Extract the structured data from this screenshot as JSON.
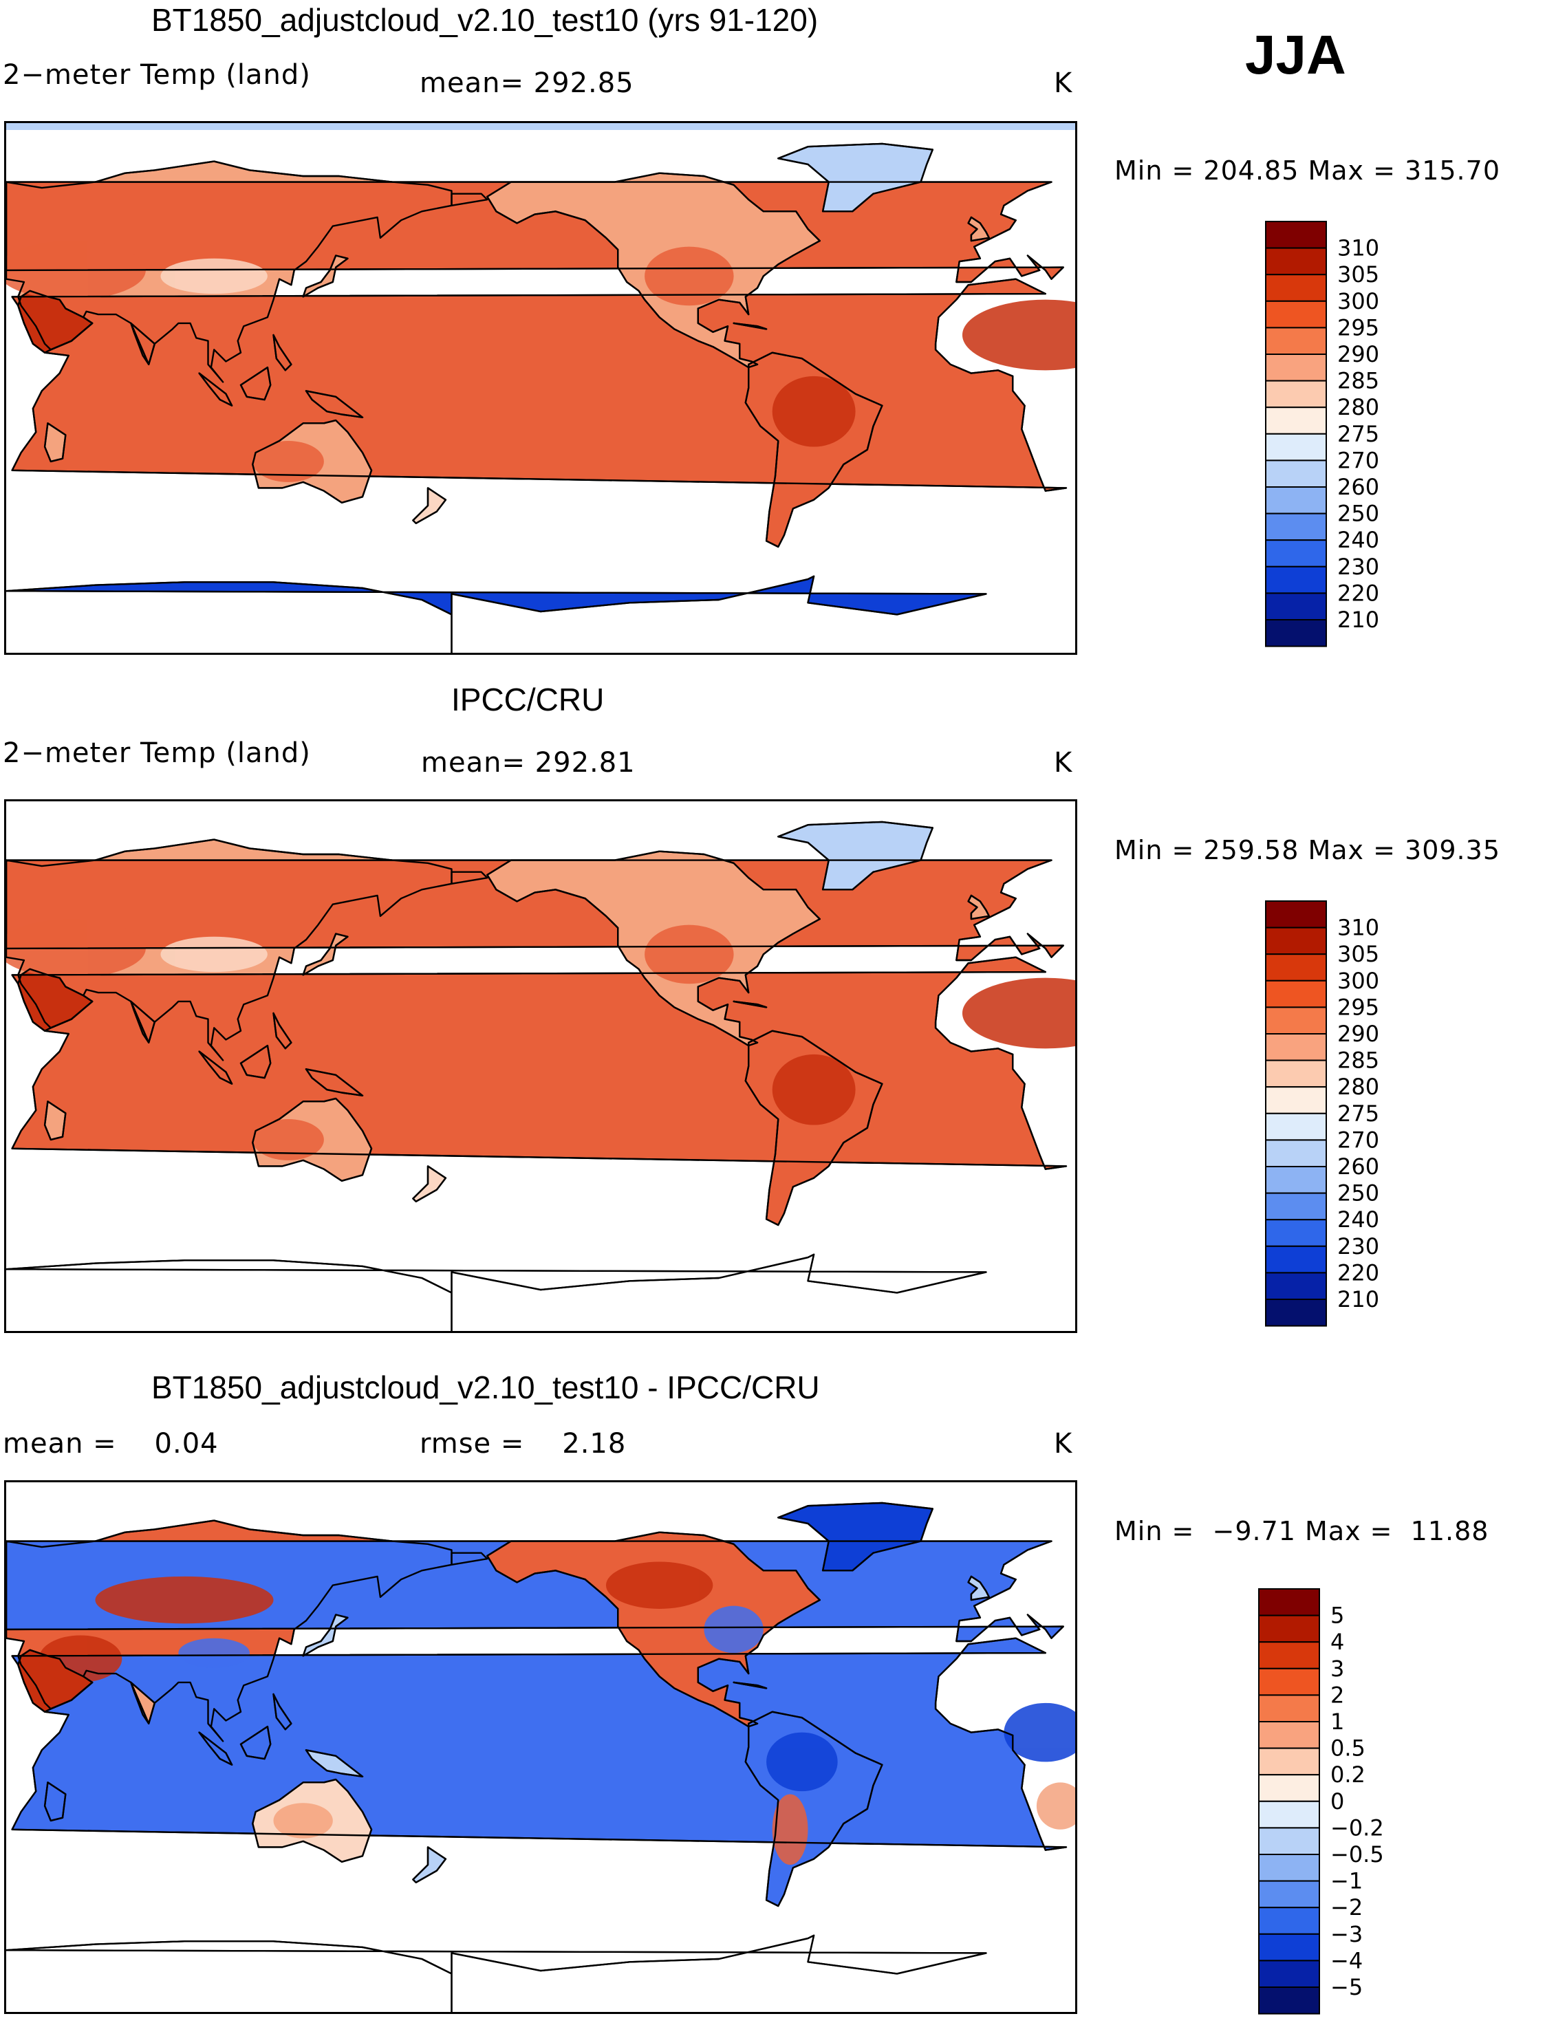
{
  "season": "JJA",
  "units": "K",
  "panels": [
    {
      "title": "BT1850_adjustcloud_v2.10_test10 (yrs 91-120)",
      "left_label": "2−meter Temp (land)",
      "mid_label": "mean= 292.85",
      "units": "K",
      "range_text": "Min = 204.85 Max = 315.70",
      "variant": "model"
    },
    {
      "title": "IPCC/CRU",
      "left_label": "2−meter Temp (land)",
      "mid_label": "mean= 292.81",
      "units": "K",
      "range_text": "Min = 259.58 Max = 309.35",
      "variant": "obs"
    },
    {
      "title": "BT1850_adjustcloud_v2.10_test10 - IPCC/CRU",
      "left_label": "mean =    0.04",
      "mid_label": "rmse =    2.18",
      "units": "K",
      "range_text": "Min =  −9.71 Max =  11.88",
      "variant": "diff"
    }
  ],
  "colorbars": {
    "temp": {
      "labels": [
        "310",
        "305",
        "300",
        "295",
        "290",
        "285",
        "280",
        "275",
        "270",
        "260",
        "250",
        "240",
        "230",
        "220",
        "210"
      ],
      "colors": [
        "#7f0000",
        "#b21a00",
        "#d8380c",
        "#ee5522",
        "#f47a4a",
        "#f9a37f",
        "#fccbb0",
        "#fdeee2",
        "#deecfb",
        "#b8d2f7",
        "#8db3f3",
        "#5c8df0",
        "#2f67ea",
        "#0e3fd6",
        "#0622a8",
        "#04106e"
      ]
    },
    "diff": {
      "labels": [
        "5",
        "4",
        "3",
        "2",
        "1",
        "0.5",
        "0.2",
        "0",
        "−0.2",
        "−0.5",
        "−1",
        "−2",
        "−3",
        "−4",
        "−5"
      ],
      "colors": [
        "#7f0000",
        "#b21a00",
        "#d8380c",
        "#ee5522",
        "#f47a4a",
        "#f9a37f",
        "#fccbb0",
        "#fdeee2",
        "#deecfb",
        "#b8d2f7",
        "#8db3f3",
        "#5c8df0",
        "#2f67ea",
        "#0e3fd6",
        "#0622a8",
        "#04106e"
      ]
    }
  },
  "map_colors": {
    "warm_dark": "#c8300f",
    "warm_mid": "#e8603a",
    "warm_light": "#f4a37e",
    "warm_pale": "#fbd7c3",
    "cold_pale": "#b8d2f7",
    "cold_dark": "#0e3fd6",
    "cold_mid": "#3f6ff0"
  }
}
